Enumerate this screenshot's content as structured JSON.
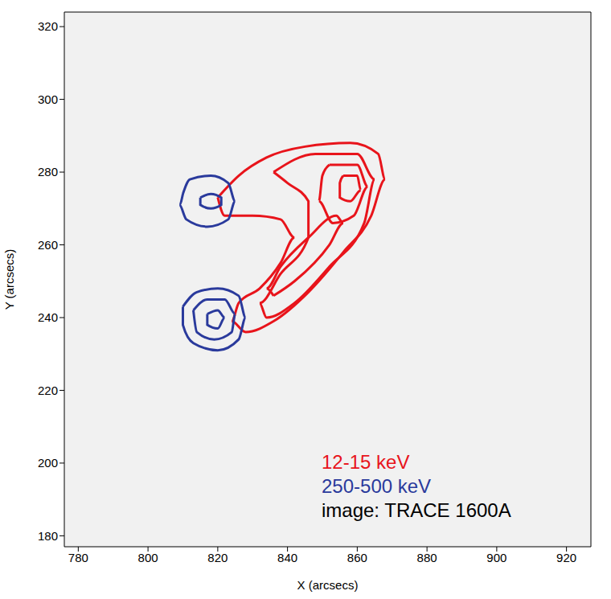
{
  "chart_data": {
    "type": "contour",
    "x_label": "X (arcsecs)",
    "y_label": "Y (arcsecs)",
    "xlim": [
      776,
      927
    ],
    "xticks": [
      780,
      800,
      820,
      840,
      860,
      880,
      900,
      920
    ],
    "ylim": [
      177,
      324
    ],
    "yticks": [
      180,
      200,
      220,
      240,
      260,
      280,
      300,
      320
    ],
    "legend": "lower right",
    "annotations": [
      "image: TRACE 1600A"
    ],
    "series": [
      {
        "name": "12-15 keV",
        "color": "#e8141b",
        "contours": [
          [
            [
              820,
              273
            ],
            [
              826,
              279
            ],
            [
              834,
              284
            ],
            [
              845,
              287
            ],
            [
              858,
              288
            ],
            [
              866,
              285
            ],
            [
              868,
              278
            ],
            [
              864,
              268
            ],
            [
              856,
              258
            ],
            [
              846,
              247
            ],
            [
              836,
              239
            ],
            [
              828,
              236
            ],
            [
              824,
              239
            ],
            [
              826,
              244
            ],
            [
              832,
              248
            ],
            [
              838,
              255
            ],
            [
              842,
              262
            ],
            [
              838,
              267
            ],
            [
              830,
              268
            ],
            [
              822,
              268
            ],
            [
              820,
              273
            ]
          ],
          [
            [
              836,
              280
            ],
            [
              848,
              285
            ],
            [
              860,
              285
            ],
            [
              865,
              278
            ],
            [
              862,
              266
            ],
            [
              852,
              254
            ],
            [
              842,
              244
            ],
            [
              834,
              240
            ],
            [
              832,
              244
            ],
            [
              838,
              252
            ],
            [
              846,
              262
            ],
            [
              846,
              272
            ],
            [
              840,
              277
            ],
            [
              836,
              280
            ]
          ],
          [
            [
              852,
              282
            ],
            [
              860,
              282
            ],
            [
              863,
              276
            ],
            [
              859,
              268
            ],
            [
              853,
              266
            ],
            [
              849,
              272
            ],
            [
              850,
              279
            ],
            [
              852,
              282
            ]
          ],
          [
            [
              836,
              246
            ],
            [
              842,
              250
            ],
            [
              852,
              260
            ],
            [
              856,
              266
            ],
            [
              854,
              268
            ],
            [
              846,
              262
            ],
            [
              838,
              254
            ],
            [
              834,
              248
            ],
            [
              836,
              246
            ]
          ],
          [
            [
              856,
              279
            ],
            [
              860,
              279
            ],
            [
              861,
              275
            ],
            [
              858,
              272
            ],
            [
              855,
              273
            ],
            [
              855,
              277
            ],
            [
              856,
              279
            ]
          ]
        ]
      },
      {
        "name": "250-500 keV",
        "color": "#2a3a9c",
        "contours": [
          [
            [
              810,
              274
            ],
            [
              812,
              278
            ],
            [
              818,
              279
            ],
            [
              823,
              277
            ],
            [
              825,
              272
            ],
            [
              823,
              267
            ],
            [
              817,
              265
            ],
            [
              811,
              267
            ],
            [
              809,
              271
            ],
            [
              810,
              274
            ]
          ],
          [
            [
              815,
              273
            ],
            [
              818,
              274
            ],
            [
              821,
              273
            ],
            [
              821,
              271
            ],
            [
              818,
              270
            ],
            [
              815,
              271
            ],
            [
              815,
              273
            ]
          ],
          [
            [
              810,
              243
            ],
            [
              814,
              247
            ],
            [
              820,
              248
            ],
            [
              826,
              246
            ],
            [
              828,
              240
            ],
            [
              826,
              234
            ],
            [
              820,
              231
            ],
            [
              813,
              233
            ],
            [
              810,
              238
            ],
            [
              810,
              243
            ]
          ],
          [
            [
              813,
              242
            ],
            [
              817,
              245
            ],
            [
              822,
              245
            ],
            [
              825,
              241
            ],
            [
              824,
              236
            ],
            [
              819,
              234
            ],
            [
              814,
              236
            ],
            [
              813,
              242
            ]
          ],
          [
            [
              817,
              241
            ],
            [
              820,
              242
            ],
            [
              822,
              240
            ],
            [
              820,
              237
            ],
            [
              817,
              238
            ],
            [
              817,
              241
            ]
          ]
        ]
      }
    ]
  }
}
